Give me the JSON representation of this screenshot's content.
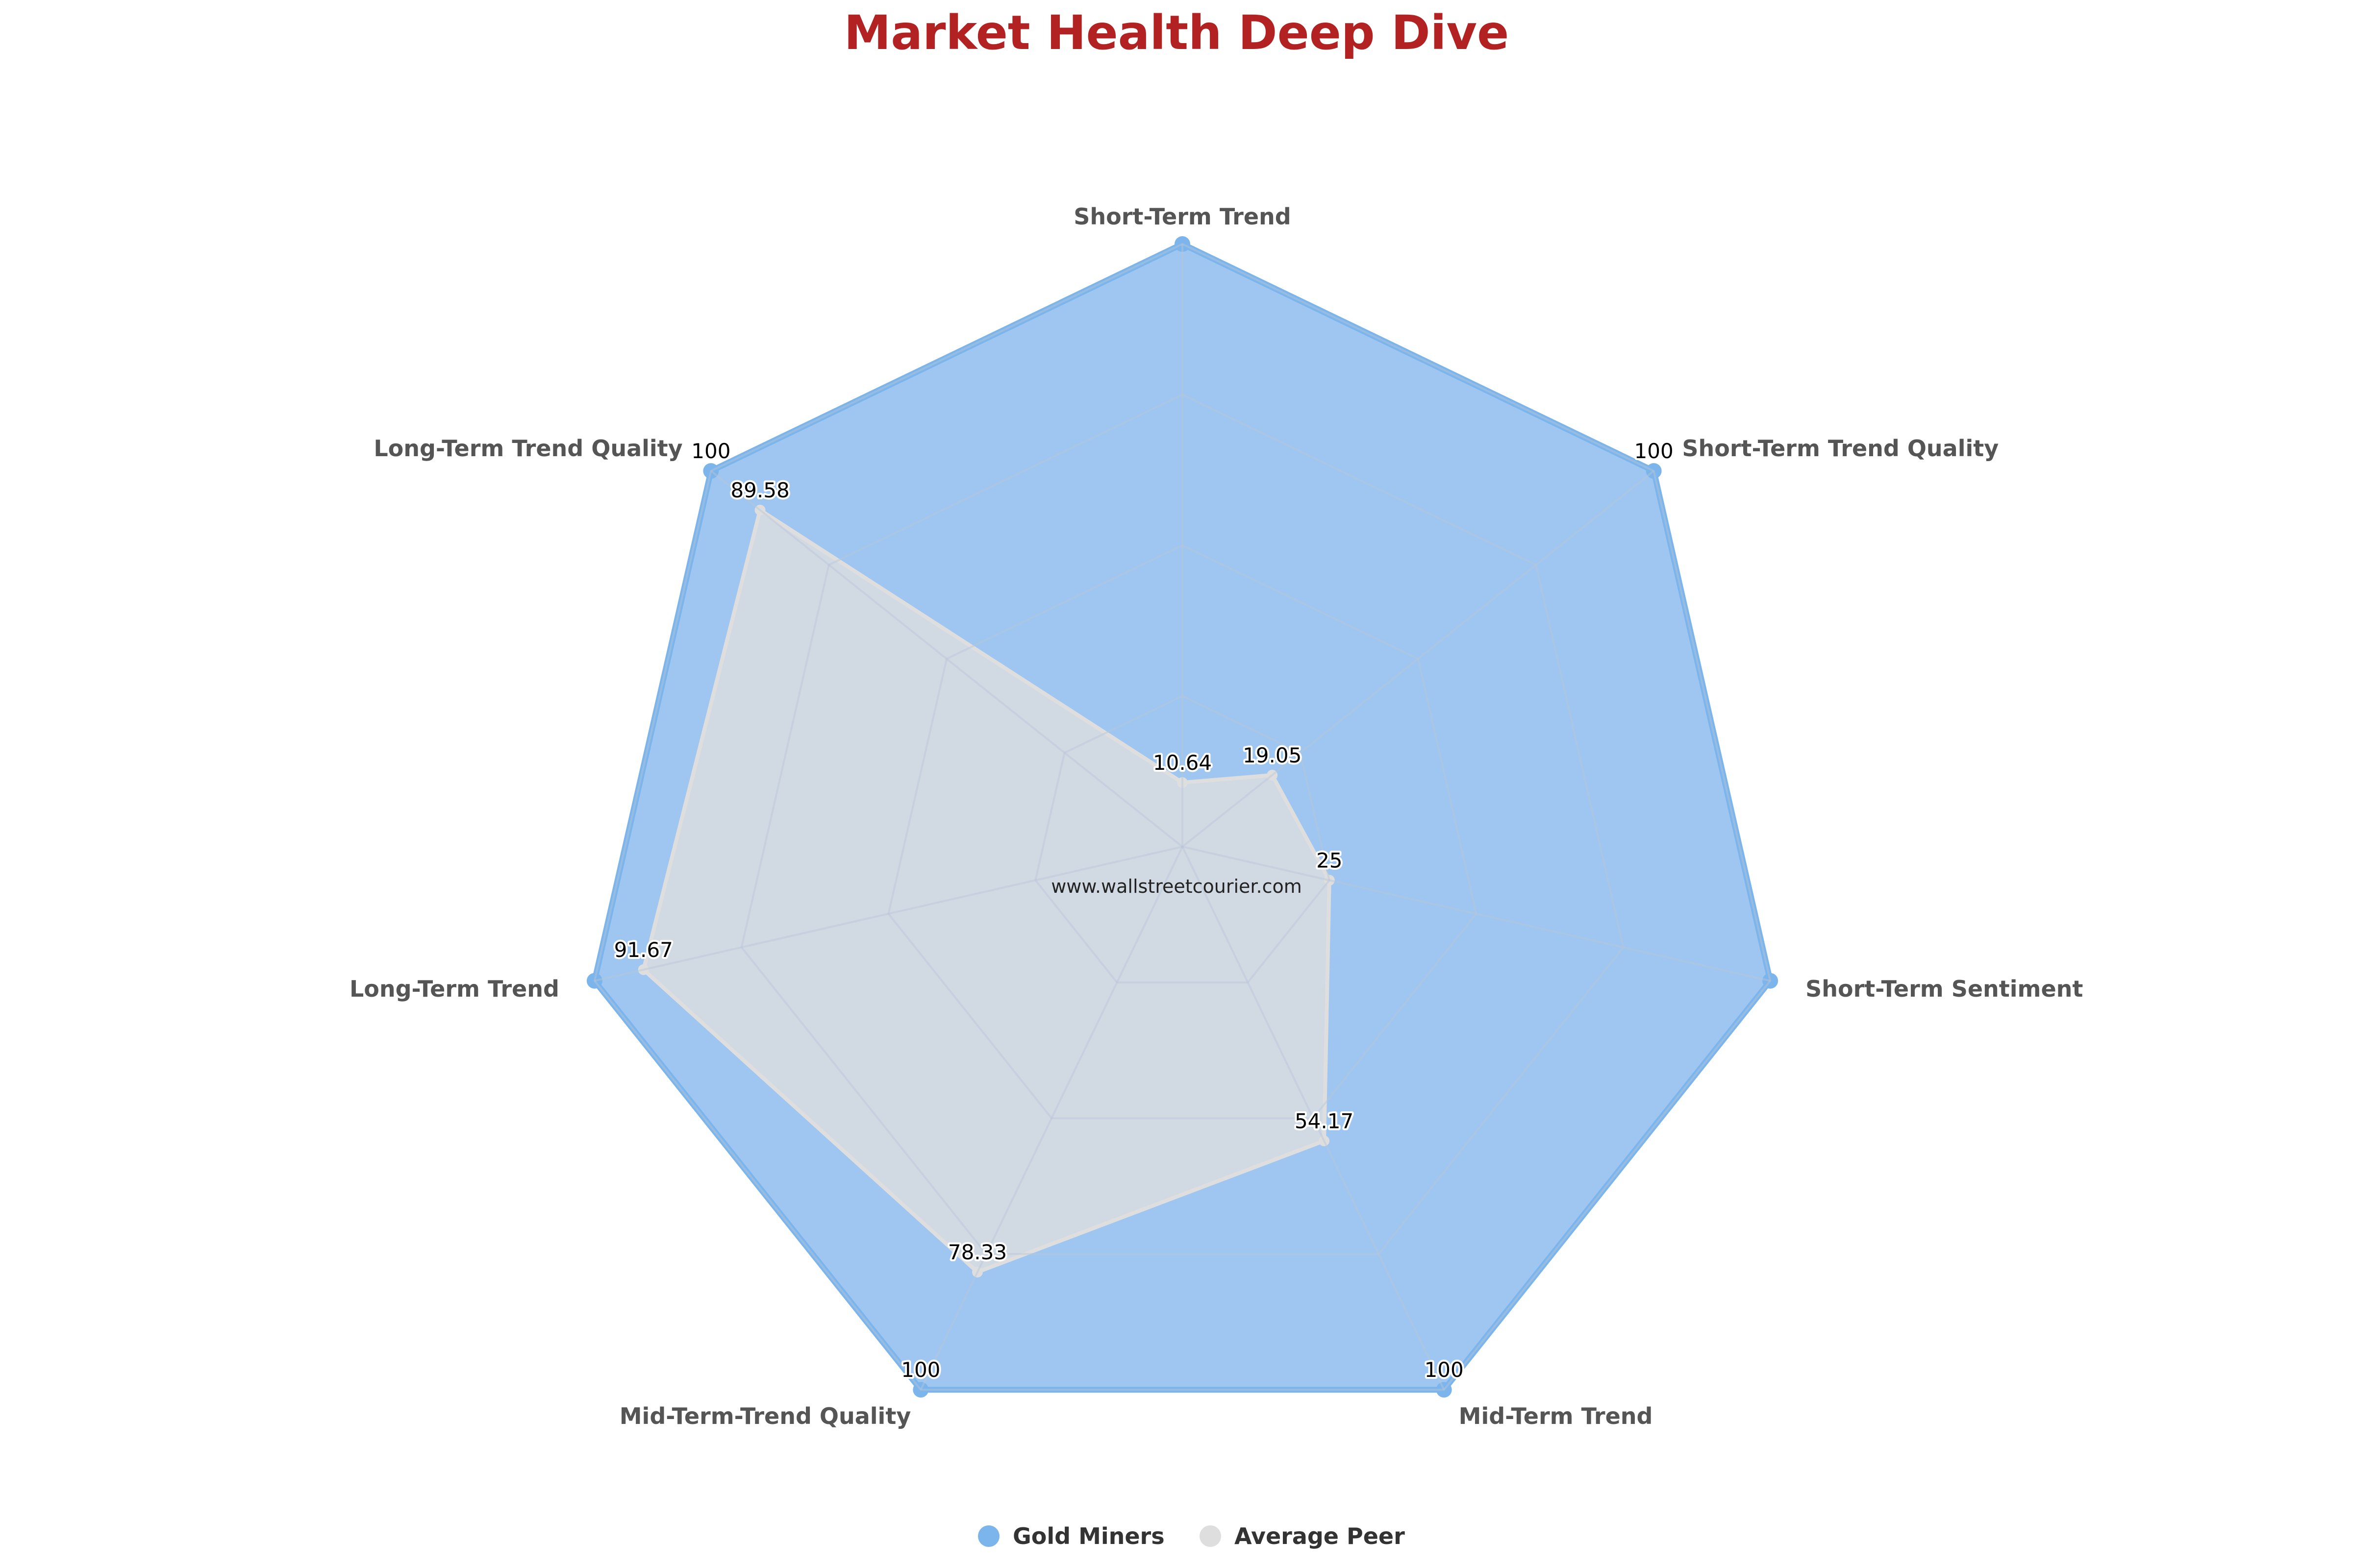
{
  "chart_data": {
    "type": "radar",
    "title": "Market Health Deep Dive",
    "title_color": "#b22222",
    "axes": [
      "Short-Term Trend",
      "Short-Term Trend Quality",
      "Short-Term Sentiment",
      "Mid-Term Trend",
      "Mid-Term-Trend Quality",
      "Long-Term Trend",
      "Long-Term Trend Quality"
    ],
    "range": [
      0,
      100
    ],
    "grid": true,
    "legend_position": "bottom",
    "series": [
      {
        "name": "Gold Miners",
        "values": [
          100,
          100,
          100,
          100,
          100,
          100,
          100
        ],
        "data_labels": [
          "",
          "100",
          "",
          "100",
          "100",
          "",
          "100"
        ],
        "color": "#7cb5ec",
        "fill": "#9ec6f0"
      },
      {
        "name": "Average Peer",
        "values": [
          10.64,
          19.05,
          25,
          54.17,
          78.33,
          91.67,
          89.58
        ],
        "data_labels": [
          "10.64",
          "19.05",
          "25",
          "54.17",
          "78.33",
          "91.67",
          "89.58"
        ],
        "color": "#dedede",
        "fill": "#d8dce0"
      }
    ],
    "watermark": "www.wallstreetcourier.com"
  }
}
